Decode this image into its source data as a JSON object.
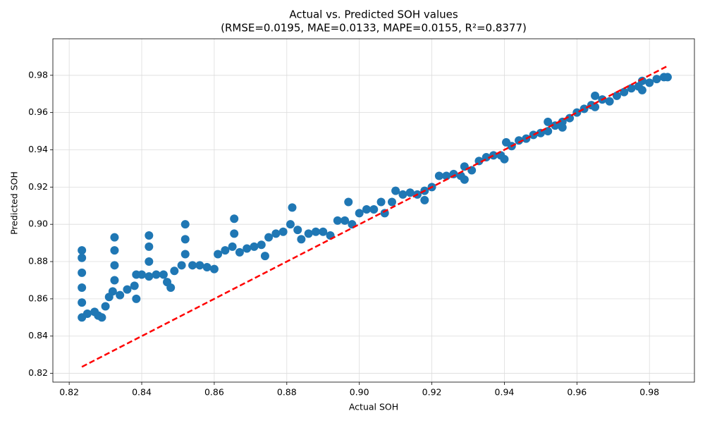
{
  "chart_data": {
    "type": "scatter",
    "title": "Actual vs. Predicted SOH values",
    "subtitle": "(RMSE=0.0195, MAE=0.0133, MAPE=0.0155, R²=0.8377)",
    "xlabel": "Actual SOH",
    "ylabel": "Predicted SOH",
    "xlim": [
      0.8155,
      0.9924
    ],
    "ylim": [
      0.8153,
      0.9996
    ],
    "xticks": [
      0.82,
      0.84,
      0.86,
      0.88,
      {
        "value": 0.9,
        "label": "0.90"
      },
      0.92,
      0.94,
      0.96,
      0.98
    ],
    "yticks": [
      0.82,
      0.84,
      0.86,
      0.88,
      {
        "value": 0.9,
        "label": "0.90"
      },
      0.92,
      0.94,
      0.96,
      0.98
    ],
    "grid": true,
    "series": [
      {
        "color": "#1f77b4",
        "kind": "points",
        "x": [
          0.8235,
          0.8235,
          0.8235,
          0.8235,
          0.8235,
          0.8235,
          0.825,
          0.827,
          0.828,
          0.829,
          0.83,
          0.831,
          0.832,
          0.8325,
          0.8325,
          0.8325,
          0.8325,
          0.834,
          0.836,
          0.838,
          0.8385,
          0.8385,
          0.84,
          0.842,
          0.842,
          0.842,
          0.842,
          0.844,
          0.846,
          0.847,
          0.848,
          0.849,
          0.851,
          0.852,
          0.852,
          0.852,
          0.854,
          0.856,
          0.858,
          0.86,
          0.861,
          0.863,
          0.865,
          0.8655,
          0.8655,
          0.867,
          0.869,
          0.871,
          0.873,
          0.874,
          0.875,
          0.877,
          0.879,
          0.881,
          0.8815,
          0.883,
          0.884,
          0.886,
          0.888,
          0.89,
          0.892,
          0.894,
          0.896,
          0.897,
          0.898,
          0.9,
          0.902,
          0.904,
          0.906,
          0.907,
          0.909,
          0.91,
          0.912,
          0.914,
          0.916,
          0.918,
          0.918,
          0.92,
          0.922,
          0.924,
          0.926,
          0.928,
          0.929,
          0.929,
          0.931,
          0.933,
          0.935,
          0.937,
          0.939,
          0.94,
          0.9405,
          0.942,
          0.944,
          0.946,
          0.948,
          0.95,
          0.952,
          0.952,
          0.954,
          0.956,
          0.956,
          0.958,
          0.96,
          0.962,
          0.964,
          0.965,
          0.965,
          0.967,
          0.969,
          0.971,
          0.973,
          0.975,
          0.977,
          0.978,
          0.978,
          0.98,
          0.982,
          0.984,
          0.985
        ],
        "values": [
          0.85,
          0.858,
          0.866,
          0.874,
          0.882,
          0.886,
          0.852,
          0.853,
          0.851,
          0.85,
          0.856,
          0.861,
          0.864,
          0.87,
          0.878,
          0.886,
          0.893,
          0.862,
          0.865,
          0.867,
          0.86,
          0.873,
          0.873,
          0.872,
          0.88,
          0.888,
          0.894,
          0.873,
          0.873,
          0.869,
          0.866,
          0.875,
          0.878,
          0.884,
          0.892,
          0.9,
          0.878,
          0.878,
          0.877,
          0.876,
          0.884,
          0.886,
          0.888,
          0.903,
          0.895,
          0.885,
          0.887,
          0.888,
          0.889,
          0.883,
          0.893,
          0.895,
          0.896,
          0.9,
          0.909,
          0.897,
          0.892,
          0.895,
          0.896,
          0.896,
          0.894,
          0.902,
          0.902,
          0.912,
          0.9,
          0.906,
          0.908,
          0.908,
          0.912,
          0.906,
          0.912,
          0.918,
          0.916,
          0.917,
          0.916,
          0.918,
          0.913,
          0.92,
          0.926,
          0.926,
          0.927,
          0.926,
          0.931,
          0.924,
          0.929,
          0.934,
          0.936,
          0.937,
          0.937,
          0.935,
          0.944,
          0.942,
          0.945,
          0.946,
          0.948,
          0.949,
          0.955,
          0.95,
          0.953,
          0.955,
          0.952,
          0.957,
          0.96,
          0.962,
          0.964,
          0.969,
          0.963,
          0.967,
          0.966,
          0.969,
          0.971,
          0.973,
          0.974,
          0.977,
          0.972,
          0.976,
          0.978,
          0.979,
          0.979
        ]
      },
      {
        "color": "#ff0000",
        "kind": "dashed-line",
        "x": [
          0.8235,
          0.985
        ],
        "values": [
          0.8235,
          0.985
        ]
      }
    ]
  }
}
